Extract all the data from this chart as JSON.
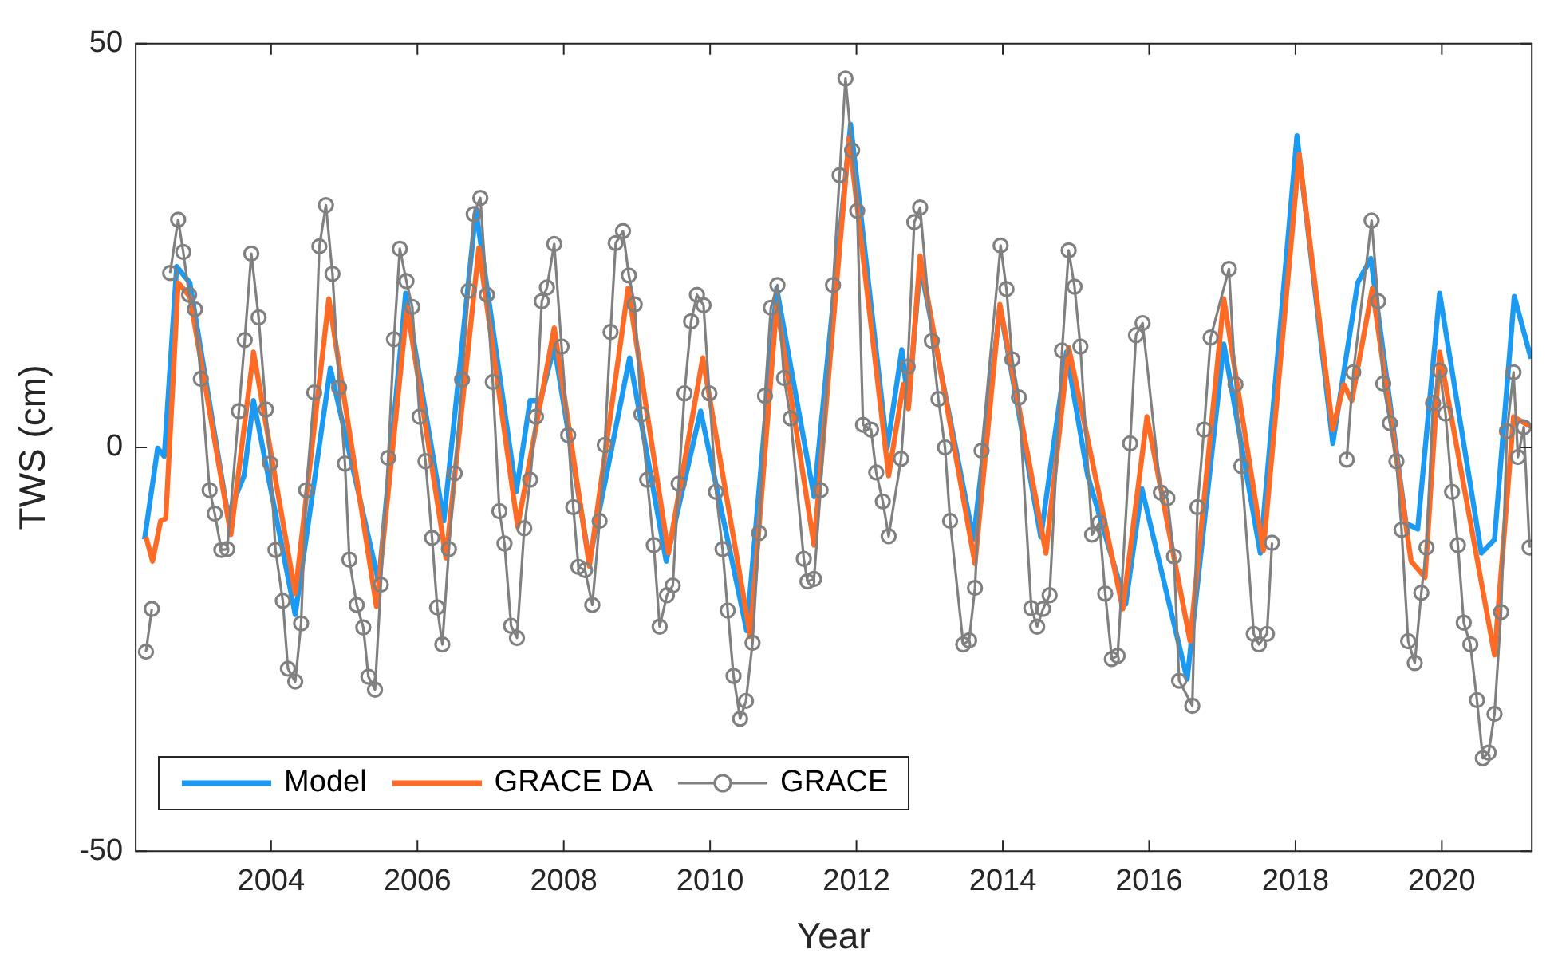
{
  "chart_data": {
    "type": "line",
    "xlabel": "Year",
    "ylabel": "TWS (cm)",
    "xlim": [
      2002.15,
      2021.23
    ],
    "xticks": [
      2004,
      2006,
      2008,
      2010,
      2012,
      2014,
      2016,
      2018,
      2020
    ],
    "ylim": [
      -50,
      50
    ],
    "yticks": [
      -50,
      0,
      50
    ],
    "legend": "bottom left",
    "series": [
      {
        "name": "Model",
        "color": "#1a9af2",
        "marker": "none",
        "x": [
          2002.27,
          2002.45,
          2002.54,
          2002.71,
          2002.89,
          2003.41,
          2003.63,
          2003.76,
          2004.33,
          2004.81,
          2005.47,
          2005.84,
          2006.36,
          2006.8,
          2007.35,
          2007.54,
          2007.68,
          2007.87,
          2008.35,
          2008.9,
          2009.4,
          2009.87,
          2010.5,
          2010.91,
          2011.42,
          2011.92,
          2012.42,
          2012.62,
          2012.71,
          2012.87,
          2013.6,
          2013.96,
          2014.52,
          2014.87,
          2015.16,
          2015.68,
          2015.9,
          2016.52,
          2017.02,
          2017.52,
          2018.02,
          2018.51,
          2018.85,
          2019.03,
          2019.51,
          2019.67,
          2019.97,
          2020.54,
          2020.72,
          2020.99,
          2021.22
        ],
        "values": [
          -11.4,
          -0.1,
          -1.1,
          22.4,
          20.4,
          -8.4,
          -3.5,
          5.8,
          -20.7,
          9.8,
          -16.7,
          19.1,
          -9.1,
          29.4,
          -5.5,
          5.8,
          5.8,
          12.5,
          -14.1,
          11.1,
          -14.1,
          4.5,
          -22.7,
          19.7,
          -6.1,
          40.0,
          -0.1,
          12.1,
          5.2,
          22.6,
          -11.4,
          17.4,
          -11.1,
          11.8,
          -3.5,
          -19.4,
          -5.1,
          -28.7,
          12.8,
          -13.1,
          38.6,
          0.5,
          20.4,
          23.4,
          -9.4,
          -10.1,
          19.1,
          -13.1,
          -11.4,
          18.7,
          11.0
        ]
      },
      {
        "name": "GRACE DA",
        "color": "#ff6a24",
        "marker": "none",
        "x": [
          2002.29,
          2002.38,
          2002.49,
          2002.56,
          2002.73,
          2002.89,
          2003.45,
          2003.76,
          2004.33,
          2004.79,
          2005.44,
          2005.86,
          2006.39,
          2006.84,
          2007.37,
          2007.87,
          2008.35,
          2008.88,
          2009.43,
          2009.9,
          2010.55,
          2010.91,
          2011.42,
          2011.9,
          2012.44,
          2012.64,
          2012.71,
          2012.87,
          2013.62,
          2013.96,
          2014.59,
          2014.9,
          2015.64,
          2015.97,
          2016.56,
          2017.02,
          2017.56,
          2018.05,
          2018.51,
          2018.66,
          2018.77,
          2019.05,
          2019.58,
          2019.77,
          2019.97,
          2020.72,
          2020.98,
          2021.23
        ],
        "values": [
          -11.1,
          -14.1,
          -9.1,
          -8.8,
          20.4,
          18.7,
          -10.8,
          11.8,
          -18.1,
          18.4,
          -19.7,
          17.4,
          -13.7,
          24.7,
          -9.8,
          14.8,
          -14.7,
          19.7,
          -13.1,
          11.1,
          -23.4,
          17.7,
          -12.1,
          38.3,
          -3.5,
          7.8,
          4.8,
          23.7,
          -14.4,
          17.7,
          -13.1,
          12.4,
          -20.0,
          3.8,
          -24.0,
          18.4,
          -12.8,
          36.3,
          2.2,
          7.8,
          5.8,
          19.7,
          -14.1,
          -16.1,
          11.8,
          -25.7,
          3.8,
          2.5
        ]
      },
      {
        "name": "GRACE",
        "color": "#808080",
        "marker": "circle",
        "x": [
          2002.29,
          2002.37,
          2002.5,
          2002.62,
          2002.73,
          2002.8,
          2002.88,
          2002.96,
          2003.04,
          2003.16,
          2003.23,
          2003.32,
          2003.4,
          2003.56,
          2003.64,
          2003.73,
          2003.83,
          2003.93,
          2003.99,
          2004.06,
          2004.16,
          2004.23,
          2004.33,
          2004.41,
          2004.48,
          2004.59,
          2004.66,
          2004.75,
          2004.84,
          2004.93,
          2005.01,
          2005.07,
          2005.17,
          2005.26,
          2005.33,
          2005.42,
          2005.5,
          2005.6,
          2005.68,
          2005.76,
          2005.85,
          2005.93,
          2006.03,
          2006.11,
          2006.2,
          2006.27,
          2006.34,
          2006.43,
          2006.51,
          2006.61,
          2006.7,
          2006.77,
          2006.86,
          2006.95,
          2007.03,
          2007.12,
          2007.19,
          2007.28,
          2007.36,
          2007.46,
          2007.54,
          2007.62,
          2007.7,
          2007.77,
          2007.87,
          2007.97,
          2008.06,
          2008.13,
          2008.2,
          2008.29,
          2008.39,
          2008.49,
          2008.56,
          2008.64,
          2008.71,
          2008.81,
          2008.89,
          2008.97,
          2009.06,
          2009.14,
          2009.23,
          2009.31,
          2009.41,
          2009.49,
          2009.57,
          2009.65,
          2009.74,
          2009.82,
          2009.91,
          2009.99,
          2010.08,
          2010.17,
          2010.24,
          2010.32,
          2010.41,
          2010.49,
          2010.58,
          2010.67,
          2010.75,
          2010.83,
          2010.92,
          2011.01,
          2011.1,
          2011.28,
          2011.33,
          2011.42,
          2011.51,
          2011.68,
          2011.77,
          2011.85,
          2011.94,
          2012.01,
          2012.09,
          2012.2,
          2012.27,
          2012.36,
          2012.44,
          2012.61,
          2012.7,
          2012.79,
          2012.87,
          2013.03,
          2013.12,
          2013.21,
          2013.28,
          2013.46,
          2013.54,
          2013.62,
          2013.71,
          2013.97,
          2014.05,
          2014.13,
          2014.22,
          2014.39,
          2014.47,
          2014.55,
          2014.64,
          2014.81,
          2014.9,
          2014.98,
          2015.06,
          2015.22,
          2015.32,
          2015.4,
          2015.49,
          2015.57,
          2015.74,
          2015.82,
          2015.91,
          2016.16,
          2016.25,
          2016.34,
          2016.41,
          2016.59,
          2016.66,
          2016.75,
          2016.84,
          2017.09,
          2017.18,
          2017.26,
          2017.43,
          2017.5,
          2017.61,
          2017.68,
          2018.2,
          2018.7,
          2018.79,
          2019.04,
          2019.13,
          2019.2,
          2019.29,
          2019.38,
          2019.45,
          2019.54,
          2019.63,
          2019.72,
          2019.79,
          2019.88,
          2019.97,
          2020.05,
          2020.14,
          2020.22,
          2020.3,
          2020.39,
          2020.48,
          2020.56,
          2020.64,
          2020.72,
          2020.81,
          2020.89,
          2020.98,
          2021.04,
          2021.12,
          2021.2
        ],
        "values": [
          -25.3,
          -20.0,
          null,
          21.6,
          28.2,
          24.2,
          18.9,
          17.1,
          8.5,
          -5.3,
          -8.2,
          -12.7,
          -12.6,
          4.5,
          13.3,
          24.0,
          16.1,
          4.7,
          -2.0,
          -12.7,
          -19.0,
          -27.4,
          -29.0,
          -21.8,
          -5.3,
          6.8,
          24.9,
          30.0,
          21.5,
          7.4,
          -2.0,
          -13.9,
          -19.5,
          -22.3,
          -28.4,
          -30.0,
          -17.0,
          -1.3,
          13.4,
          24.6,
          20.6,
          17.4,
          3.8,
          -1.7,
          -11.2,
          -19.8,
          -24.4,
          -12.6,
          -3.2,
          8.4,
          19.4,
          28.9,
          30.9,
          18.9,
          8.1,
          -7.9,
          -11.9,
          -22.1,
          -23.6,
          -10.0,
          -4.0,
          3.8,
          18.1,
          19.8,
          25.2,
          12.5,
          1.5,
          -7.4,
          -14.8,
          -15.2,
          -19.5,
          -9.1,
          0.3,
          14.3,
          25.3,
          26.8,
          21.3,
          17.7,
          4.1,
          -4.0,
          -12.1,
          -22.2,
          -18.3,
          -17.1,
          -4.5,
          6.7,
          15.6,
          18.9,
          17.6,
          6.7,
          -5.5,
          -12.6,
          -20.2,
          -28.3,
          -33.6,
          -31.4,
          -24.2,
          -10.6,
          6.4,
          17.3,
          20.1,
          8.6,
          3.6,
          -13.8,
          -16.6,
          -16.3,
          -5.3,
          20.1,
          33.7,
          45.7,
          36.8,
          29.3,
          2.8,
          2.2,
          -3.1,
          -6.7,
          -11.0,
          -1.4,
          10.0,
          27.9,
          29.7,
          13.2,
          6.0,
          0.0,
          -9.1,
          -24.4,
          -23.9,
          -17.4,
          -0.4,
          25.0,
          19.6,
          10.9,
          6.2,
          -19.9,
          -22.2,
          -20.0,
          -18.3,
          12.0,
          24.4,
          19.9,
          12.5,
          -10.8,
          -9.3,
          -18.1,
          -26.2,
          -25.8,
          0.5,
          13.9,
          15.4,
          -5.6,
          -6.3,
          -13.5,
          -28.9,
          -32.0,
          -7.4,
          2.2,
          13.6,
          22.1,
          7.8,
          -2.3,
          -23.1,
          -24.4,
          -23.1,
          -11.8,
          null,
          -1.5,
          9.3,
          28.1,
          18.1,
          7.9,
          3.0,
          -1.7,
          -10.2,
          -24.0,
          -26.7,
          -18.0,
          -12.4,
          5.5,
          9.5,
          4.2,
          -5.5,
          -12.1,
          -21.7,
          -24.4,
          -31.3,
          -38.5,
          -37.8,
          -33.0,
          -20.4,
          2.0,
          9.3,
          -1.2,
          2.5,
          -12.4
        ]
      }
    ]
  }
}
